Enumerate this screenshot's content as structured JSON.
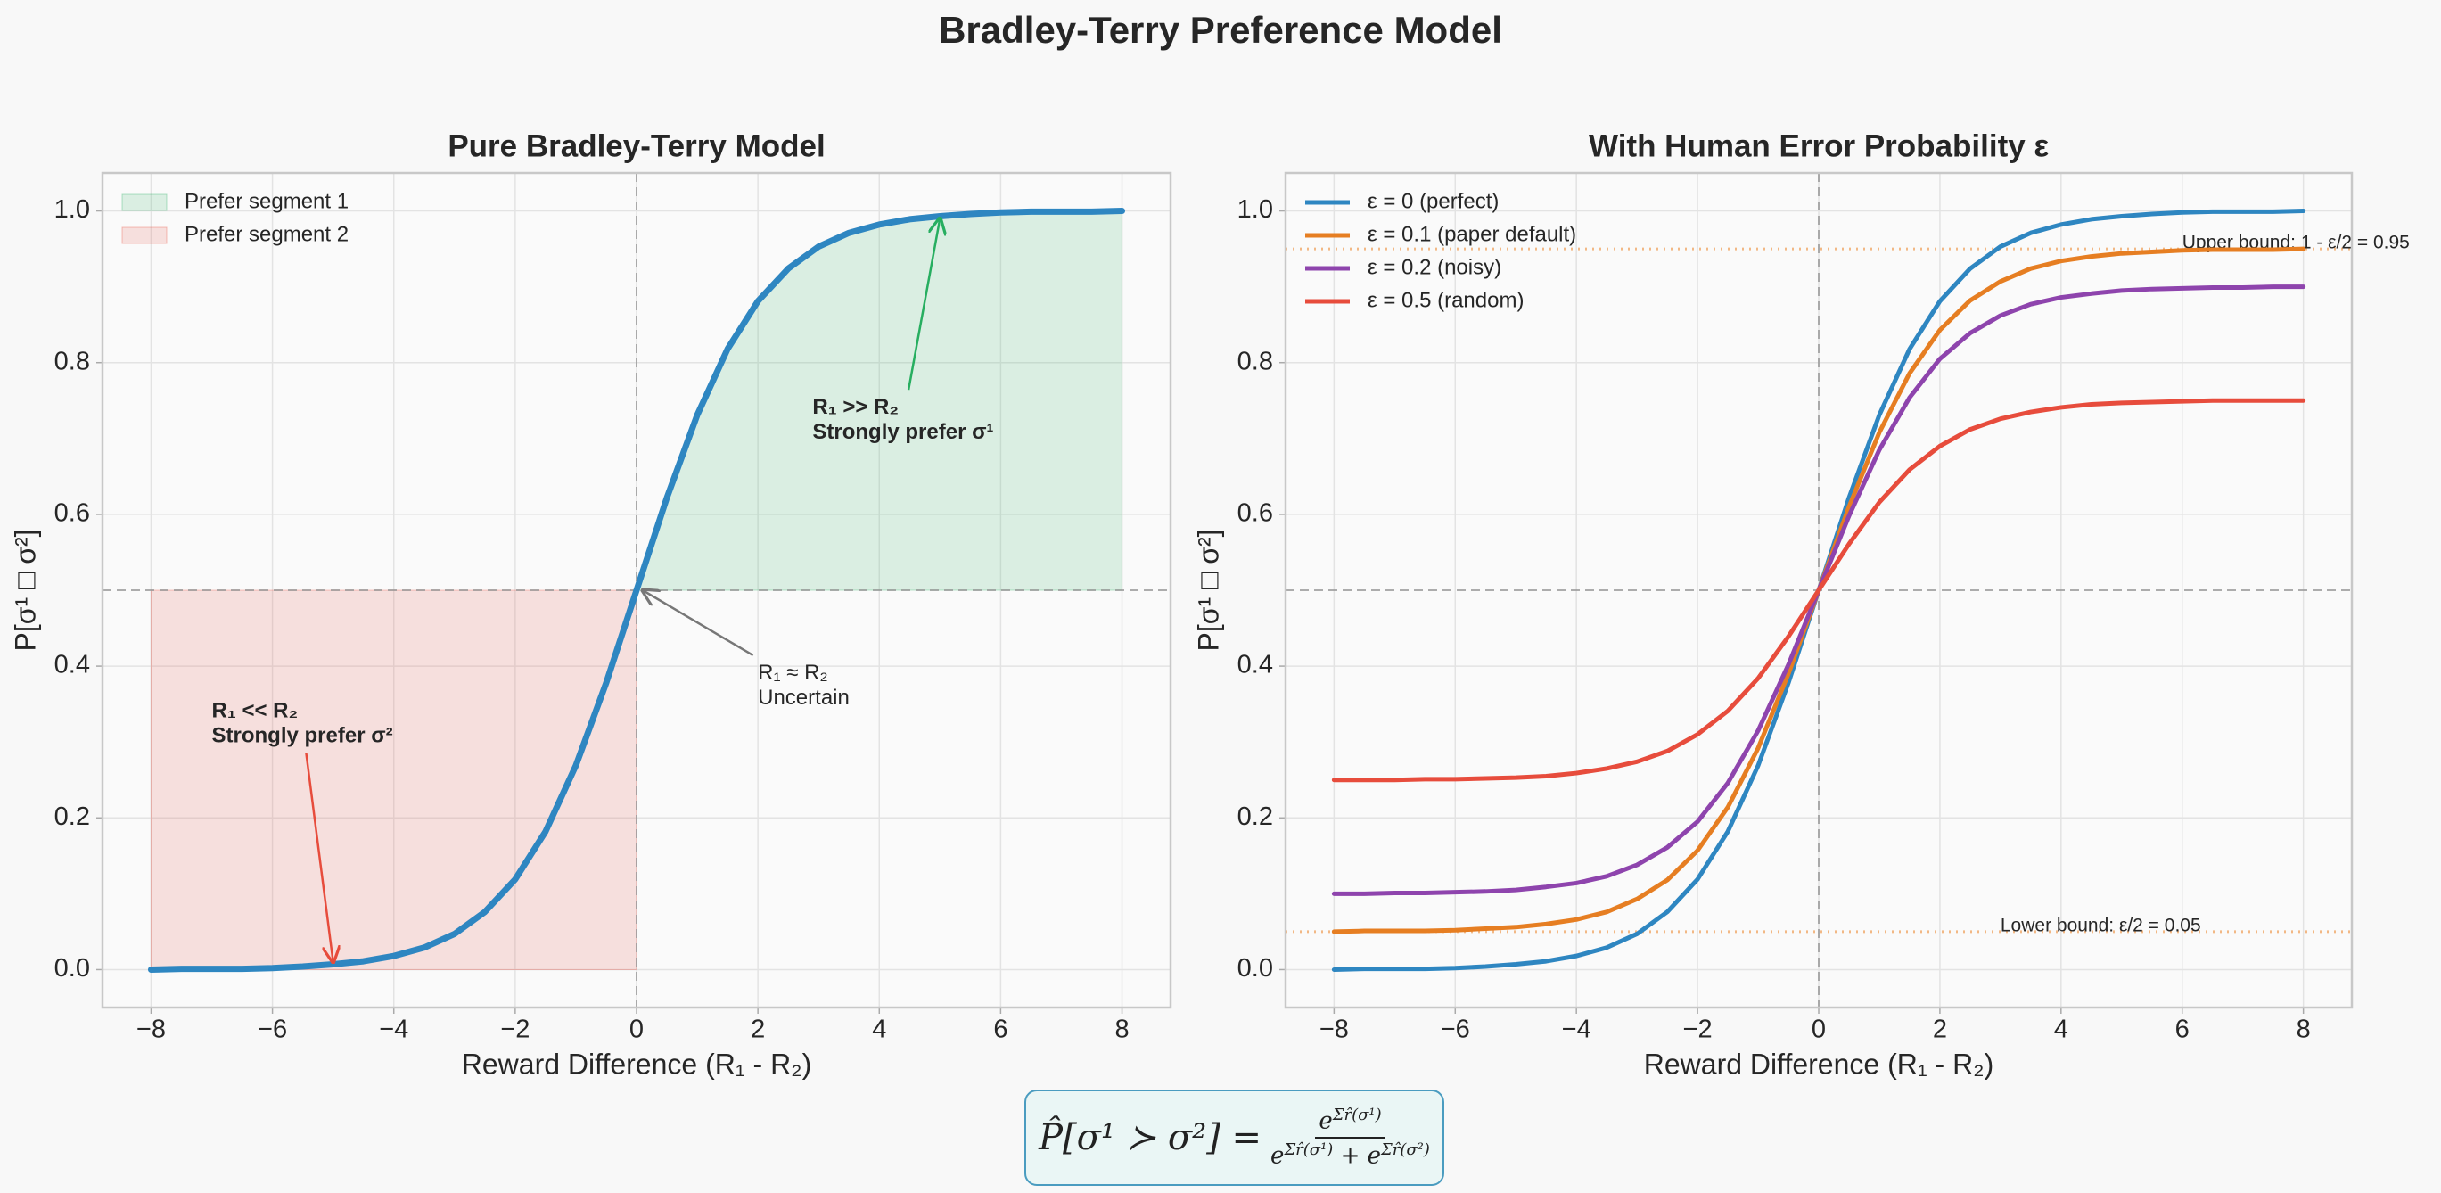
{
  "title": "Bradley-Terry Preference Model",
  "chart_data": [
    {
      "type": "line",
      "title": "Pure Bradley-Terry Model",
      "x_label": "Reward Difference (R₁ - R₂)",
      "y_label": "P[σ¹ □ σ²]",
      "x": [
        -8,
        -7.5,
        -7,
        -6.5,
        -6,
        -5.5,
        -5,
        -4.5,
        -4,
        -3.5,
        -3,
        -2.5,
        -2,
        -1.5,
        -1,
        -0.5,
        0,
        0.5,
        1,
        1.5,
        2,
        2.5,
        3,
        3.5,
        4,
        4.5,
        5,
        5.5,
        6,
        6.5,
        7,
        7.5,
        8
      ],
      "series": [
        {
          "color": "#2e86c1",
          "values": [
            0.0,
            0.001,
            0.001,
            0.001,
            0.002,
            0.004,
            0.007,
            0.011,
            0.018,
            0.029,
            0.047,
            0.076,
            0.119,
            0.182,
            0.269,
            0.378,
            0.5,
            0.622,
            0.731,
            0.818,
            0.881,
            0.924,
            0.953,
            0.971,
            0.982,
            0.989,
            0.993,
            0.996,
            0.998,
            0.999,
            0.999,
            0.999,
            1.0
          ]
        }
      ],
      "fills": [
        {
          "name": "Prefer segment 1",
          "color": "#27ae60",
          "x_range": [
            0,
            8
          ],
          "y_from": 0.5
        },
        {
          "name": "Prefer segment 2",
          "color": "#e74c3c",
          "x_range": [
            -8,
            0
          ],
          "y_from": 0,
          "y_to": 0.5
        }
      ],
      "hlines": [
        0.5
      ],
      "vlines": [
        0
      ],
      "annotations": [
        {
          "lines": [
            "R₁ >> R₂",
            "Strongly prefer σ¹"
          ],
          "color": "#27ae60",
          "bold": true,
          "xytext": [
            2.9,
            0.74
          ],
          "xy": [
            5,
            0.99
          ]
        },
        {
          "lines": [
            "R₁ << R₂",
            "Strongly prefer σ²"
          ],
          "color": "#e74c3c",
          "bold": true,
          "xytext": [
            -7,
            0.34
          ],
          "xy": [
            -5,
            0.01
          ]
        },
        {
          "lines": [
            "R₁ ≈ R₂",
            "Uncertain"
          ],
          "color": "#777777",
          "bold": false,
          "xytext": [
            2,
            0.39
          ],
          "xy": [
            0.1,
            0.5
          ]
        }
      ],
      "xlim": [
        -8.8,
        8.8
      ],
      "ylim": [
        -0.05,
        1.05
      ],
      "xticks": [
        {
          "value": -8,
          "label": "−8"
        },
        {
          "value": -6,
          "label": "−6"
        },
        {
          "value": -4,
          "label": "−4"
        },
        {
          "value": -2,
          "label": "−2"
        },
        0,
        2,
        4,
        6,
        8
      ],
      "yticks": [
        {
          "value": 0,
          "label": "0.0"
        },
        0.2,
        0.4,
        0.6,
        0.8,
        {
          "value": 1,
          "label": "1.0"
        }
      ],
      "grid": true,
      "legend": "upper left"
    },
    {
      "type": "line",
      "title": "With Human Error Probability ε",
      "x_label": "Reward Difference (R₁ - R₂)",
      "y_label": "P[σ¹ □ σ²]",
      "x": [
        -8,
        -7.5,
        -7,
        -6.5,
        -6,
        -5.5,
        -5,
        -4.5,
        -4,
        -3.5,
        -3,
        -2.5,
        -2,
        -1.5,
        -1,
        -0.5,
        0,
        0.5,
        1,
        1.5,
        2,
        2.5,
        3,
        3.5,
        4,
        4.5,
        5,
        5.5,
        6,
        6.5,
        7,
        7.5,
        8
      ],
      "series": [
        {
          "name": "ε = 0 (perfect)",
          "color": "#2e86c1",
          "values": [
            0.0,
            0.001,
            0.001,
            0.001,
            0.002,
            0.004,
            0.007,
            0.011,
            0.018,
            0.029,
            0.047,
            0.076,
            0.119,
            0.182,
            0.269,
            0.378,
            0.5,
            0.622,
            0.731,
            0.818,
            0.881,
            0.924,
            0.953,
            0.971,
            0.982,
            0.989,
            0.993,
            0.996,
            0.998,
            0.999,
            0.999,
            0.999,
            1.0
          ]
        },
        {
          "name": "ε = 0.1 (paper default)",
          "color": "#e67e22",
          "values": [
            0.05,
            0.051,
            0.051,
            0.051,
            0.052,
            0.054,
            0.056,
            0.06,
            0.066,
            0.076,
            0.093,
            0.118,
            0.157,
            0.214,
            0.292,
            0.39,
            0.5,
            0.61,
            0.708,
            0.786,
            0.843,
            0.882,
            0.907,
            0.924,
            0.934,
            0.94,
            0.944,
            0.946,
            0.948,
            0.949,
            0.949,
            0.949,
            0.95
          ]
        },
        {
          "name": "ε = 0.2 (noisy)",
          "color": "#8e44ad",
          "values": [
            0.1,
            0.1,
            0.101,
            0.101,
            0.102,
            0.103,
            0.105,
            0.109,
            0.114,
            0.123,
            0.138,
            0.161,
            0.195,
            0.246,
            0.315,
            0.402,
            0.5,
            0.598,
            0.685,
            0.754,
            0.805,
            0.839,
            0.862,
            0.877,
            0.886,
            0.891,
            0.895,
            0.897,
            0.898,
            0.899,
            0.899,
            0.9,
            0.9
          ]
        },
        {
          "name": "ε = 0.5 (random)",
          "color": "#e74c3c",
          "values": [
            0.25,
            0.25,
            0.25,
            0.251,
            0.251,
            0.252,
            0.253,
            0.255,
            0.259,
            0.265,
            0.274,
            0.288,
            0.31,
            0.341,
            0.384,
            0.439,
            0.5,
            0.561,
            0.616,
            0.659,
            0.69,
            0.712,
            0.726,
            0.735,
            0.741,
            0.745,
            0.747,
            0.748,
            0.749,
            0.75,
            0.75,
            0.75,
            0.75
          ]
        }
      ],
      "hlines": [
        0.5
      ],
      "vlines": [
        0
      ],
      "bounds": [
        {
          "value": 0.95,
          "label": "Upper bound: 1 - ε/2 = 0.95",
          "label_x": 6,
          "color": "#f0a868"
        },
        {
          "value": 0.05,
          "label": "Lower bound: ε/2 = 0.05",
          "label_x": 3,
          "color": "#f0a868"
        }
      ],
      "xlim": [
        -8.8,
        8.8
      ],
      "ylim": [
        -0.05,
        1.05
      ],
      "xticks": [
        {
          "value": -8,
          "label": "−8"
        },
        {
          "value": -6,
          "label": "−6"
        },
        {
          "value": -4,
          "label": "−4"
        },
        {
          "value": -2,
          "label": "−2"
        },
        0,
        2,
        4,
        6,
        8
      ],
      "yticks": [
        {
          "value": 0,
          "label": "0.0"
        },
        0.2,
        0.4,
        0.6,
        0.8,
        {
          "value": 1,
          "label": "1.0"
        }
      ],
      "grid": true,
      "legend": "upper left"
    }
  ],
  "formula": {
    "lhs": "P̂[σ¹ ≻ σ²] =",
    "num_base": "e",
    "num_exp": "Σr̂(σ¹)",
    "den_base1": "e",
    "den_exp1": "Σr̂(σ¹)",
    "den_plus": "+ e",
    "den_exp2": "Σr̂(σ²)"
  }
}
